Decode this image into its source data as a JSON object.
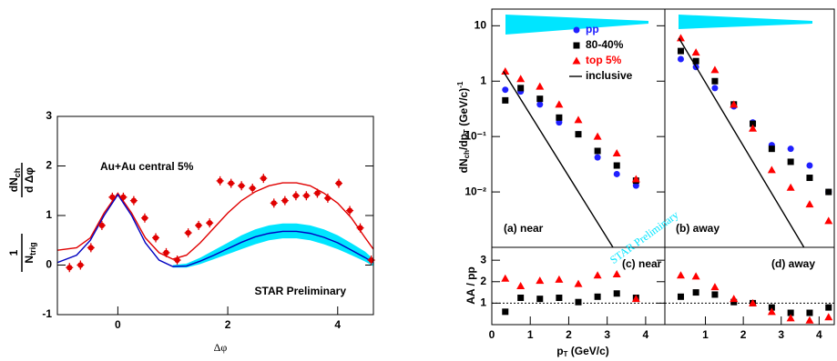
{
  "chart_data": [
    {
      "type": "scatter",
      "title": "Au+Au central 5%",
      "annotation": "STAR Preliminary",
      "xlabel": "Δφ",
      "ylabel": {
        "num1": "1",
        "den1": "N",
        "den1_sub": "trig",
        "num2": "dN",
        "num2_sub": "ch",
        "den2": "d Δφ"
      },
      "xlim": [
        -1.1,
        4.65
      ],
      "ylim": [
        -1,
        3
      ],
      "xticks": [
        0,
        2,
        4
      ],
      "yticks": [
        -1,
        0,
        1,
        2,
        3
      ],
      "series": [
        {
          "marker": "band",
          "color": "#00e5ff",
          "x": [
            1,
            1.25,
            1.5,
            1.75,
            2,
            2.25,
            2.5,
            2.75,
            3,
            3.25,
            3.5,
            3.75,
            4,
            4.25,
            4.5,
            4.65
          ],
          "upper": [
            0.0,
            0.03,
            0.15,
            0.3,
            0.45,
            0.6,
            0.72,
            0.8,
            0.84,
            0.84,
            0.8,
            0.72,
            0.6,
            0.44,
            0.27,
            0.12
          ],
          "lower": [
            -0.05,
            -0.05,
            0.02,
            0.12,
            0.22,
            0.32,
            0.42,
            0.5,
            0.54,
            0.54,
            0.5,
            0.42,
            0.32,
            0.2,
            0.07,
            -0.02
          ]
        },
        {
          "marker": "line",
          "color": "#e00000",
          "x": [
            -1.1,
            -0.75,
            -0.5,
            -0.25,
            0,
            0.25,
            0.5,
            0.75,
            1,
            1.25,
            1.5,
            1.75,
            2,
            2.25,
            2.5,
            2.75,
            3,
            3.25,
            3.5,
            3.75,
            4,
            4.25,
            4.5,
            4.65
          ],
          "values": [
            0.3,
            0.35,
            0.55,
            1.05,
            1.45,
            1.05,
            0.55,
            0.25,
            0.12,
            0.2,
            0.45,
            0.75,
            1.05,
            1.3,
            1.48,
            1.6,
            1.66,
            1.66,
            1.6,
            1.45,
            1.25,
            0.95,
            0.55,
            0.32
          ]
        },
        {
          "marker": "line",
          "color": "#0000c0",
          "x": [
            -1.1,
            -0.75,
            -0.5,
            -0.25,
            0,
            0.25,
            0.5,
            0.75,
            1,
            1.25,
            1.5,
            1.75,
            2,
            2.25,
            2.5,
            2.75,
            3,
            3.25,
            3.5,
            3.75,
            4,
            4.25,
            4.5,
            4.65
          ],
          "values": [
            0.05,
            0.2,
            0.5,
            1.0,
            1.42,
            1.0,
            0.45,
            0.1,
            -0.03,
            -0.02,
            0.08,
            0.2,
            0.33,
            0.46,
            0.57,
            0.64,
            0.68,
            0.68,
            0.64,
            0.56,
            0.45,
            0.3,
            0.15,
            0.05
          ]
        },
        {
          "marker": "cross",
          "color": "#e00000",
          "x": [
            -0.88,
            -0.68,
            -0.49,
            -0.29,
            -0.1,
            0.1,
            0.29,
            0.49,
            0.69,
            0.88,
            1.08,
            1.28,
            1.47,
            1.67,
            1.86,
            2.06,
            2.25,
            2.45,
            2.65,
            2.84,
            3.04,
            3.24,
            3.43,
            3.63,
            3.82,
            4.02,
            4.22,
            4.41,
            4.61
          ],
          "values": [
            -0.05,
            0.0,
            0.35,
            0.8,
            1.37,
            1.37,
            1.3,
            0.95,
            0.55,
            0.25,
            0.1,
            0.65,
            0.8,
            0.85,
            1.7,
            1.65,
            1.6,
            1.55,
            1.75,
            1.25,
            1.3,
            1.4,
            1.4,
            1.45,
            1.35,
            1.65,
            1.1,
            0.75,
            0.1
          ]
        }
      ]
    },
    {
      "type": "scatter",
      "log_y": true,
      "panel_label": "(a) near",
      "legend": "upper right",
      "ylabel": {
        "a": "dN",
        "a_sub": "ch",
        "b": "/dp",
        "b_sub": "T",
        "c": " (GeV/c)",
        "c_sup": "-1"
      },
      "xlim": [
        0,
        4.5
      ],
      "ylim": [
        0.001,
        20
      ],
      "yticks": [
        {
          "value": 0.01,
          "label": "10⁻²"
        },
        {
          "value": 0.1,
          "label": "10⁻¹"
        },
        1,
        10
      ],
      "series": [
        {
          "name": "pp",
          "marker": "circle",
          "color": "#2020ff",
          "x": [
            0.35,
            0.75,
            1.25,
            1.75,
            2.25,
            2.75,
            3.25,
            3.75
          ],
          "values": [
            0.7,
            0.65,
            0.38,
            0.18,
            0.11,
            0.042,
            0.021,
            0.013
          ]
        },
        {
          "name": "80-40%",
          "marker": "square",
          "color": "#000000",
          "x": [
            0.35,
            0.75,
            1.25,
            1.75,
            2.25,
            2.75,
            3.25,
            3.75
          ],
          "values": [
            0.45,
            0.75,
            0.48,
            0.22,
            0.11,
            0.055,
            0.03,
            0.016
          ]
        },
        {
          "name": "top 5%",
          "marker": "triangle",
          "color": "#ff0000",
          "x": [
            0.35,
            0.75,
            1.25,
            1.75,
            2.25,
            2.75,
            3.25,
            3.75
          ],
          "values": [
            1.5,
            1.1,
            0.8,
            0.38,
            0.2,
            0.1,
            0.05,
            0.017
          ]
        },
        {
          "name": "inclusive",
          "marker": "line",
          "color": "#000000",
          "x": [
            0.3,
            3.15
          ],
          "values": [
            1.5,
            0.001
          ]
        }
      ]
    },
    {
      "type": "scatter",
      "log_y": true,
      "panel_label": "(b) away",
      "xlim": [
        -0.07,
        4.4
      ],
      "ylim": [
        0.001,
        20
      ],
      "series": [
        {
          "marker": "circle",
          "color": "#2020ff",
          "x": [
            0.35,
            0.75,
            1.25,
            1.75,
            2.25,
            2.75,
            3.25,
            3.75,
            4.25
          ],
          "values": [
            2.5,
            1.8,
            0.75,
            0.35,
            0.18,
            0.07,
            0.06,
            0.03,
            0.01
          ]
        },
        {
          "marker": "square",
          "color": "#000000",
          "x": [
            0.35,
            0.75,
            1.25,
            1.75,
            2.25,
            2.75,
            3.25,
            3.75,
            4.25
          ],
          "values": [
            3.5,
            2.3,
            1.0,
            0.38,
            0.17,
            0.06,
            0.035,
            0.018,
            0.01
          ]
        },
        {
          "marker": "triangle",
          "color": "#ff0000",
          "x": [
            0.35,
            0.75,
            1.25,
            1.75,
            2.25,
            2.75,
            3.25,
            3.75,
            4.25
          ],
          "values": [
            6,
            3.3,
            1.6,
            0.38,
            0.14,
            0.025,
            0.012,
            0.006,
            0.003
          ]
        },
        {
          "marker": "line",
          "color": "#000000",
          "x": [
            0.3,
            3.6
          ],
          "values": [
            6,
            0.001
          ]
        }
      ]
    },
    {
      "type": "scatter",
      "panel_label": "(c) near",
      "ylabel": "AA / pp",
      "xlabel": {
        "main": "p",
        "sub": "T",
        "rest": " (GeV/c)"
      },
      "xlim": [
        0,
        4.5
      ],
      "ylim": [
        0,
        3.6
      ],
      "xticks": [
        0,
        1,
        2,
        3,
        4
      ],
      "yticks": [
        1,
        2,
        3
      ],
      "reference_line": 1,
      "series": [
        {
          "marker": "square",
          "color": "#000000",
          "x": [
            0.35,
            0.75,
            1.25,
            1.75,
            2.25,
            2.75,
            3.25,
            3.75
          ],
          "values": [
            0.6,
            1.25,
            1.2,
            1.25,
            1.05,
            1.3,
            1.45,
            1.25
          ]
        },
        {
          "marker": "triangle",
          "color": "#ff0000",
          "x": [
            0.35,
            0.75,
            1.25,
            1.75,
            2.25,
            2.75,
            3.25,
            3.75
          ],
          "values": [
            2.15,
            1.8,
            2.05,
            2.1,
            1.9,
            2.3,
            2.35,
            1.2
          ]
        }
      ]
    },
    {
      "type": "scatter",
      "panel_label": "(d) away",
      "xlim": [
        -0.07,
        4.4
      ],
      "ylim": [
        0,
        3.6
      ],
      "xticks": [
        1,
        2,
        3,
        4
      ],
      "reference_line": 1,
      "series": [
        {
          "marker": "square",
          "color": "#000000",
          "x": [
            0.35,
            0.75,
            1.25,
            1.75,
            2.25,
            2.75,
            3.25,
            3.75,
            4.25
          ],
          "values": [
            1.3,
            1.5,
            1.4,
            1.05,
            1.0,
            0.8,
            0.55,
            0.55,
            0.8
          ]
        },
        {
          "marker": "triangle",
          "color": "#ff0000",
          "x": [
            0.35,
            0.75,
            1.25,
            1.75,
            2.25,
            2.75,
            3.25,
            3.75,
            4.25
          ],
          "values": [
            2.3,
            2.25,
            1.75,
            1.2,
            1.0,
            0.6,
            0.3,
            0.2,
            0.35
          ]
        }
      ]
    }
  ],
  "watermark": "STAR Preliminary"
}
